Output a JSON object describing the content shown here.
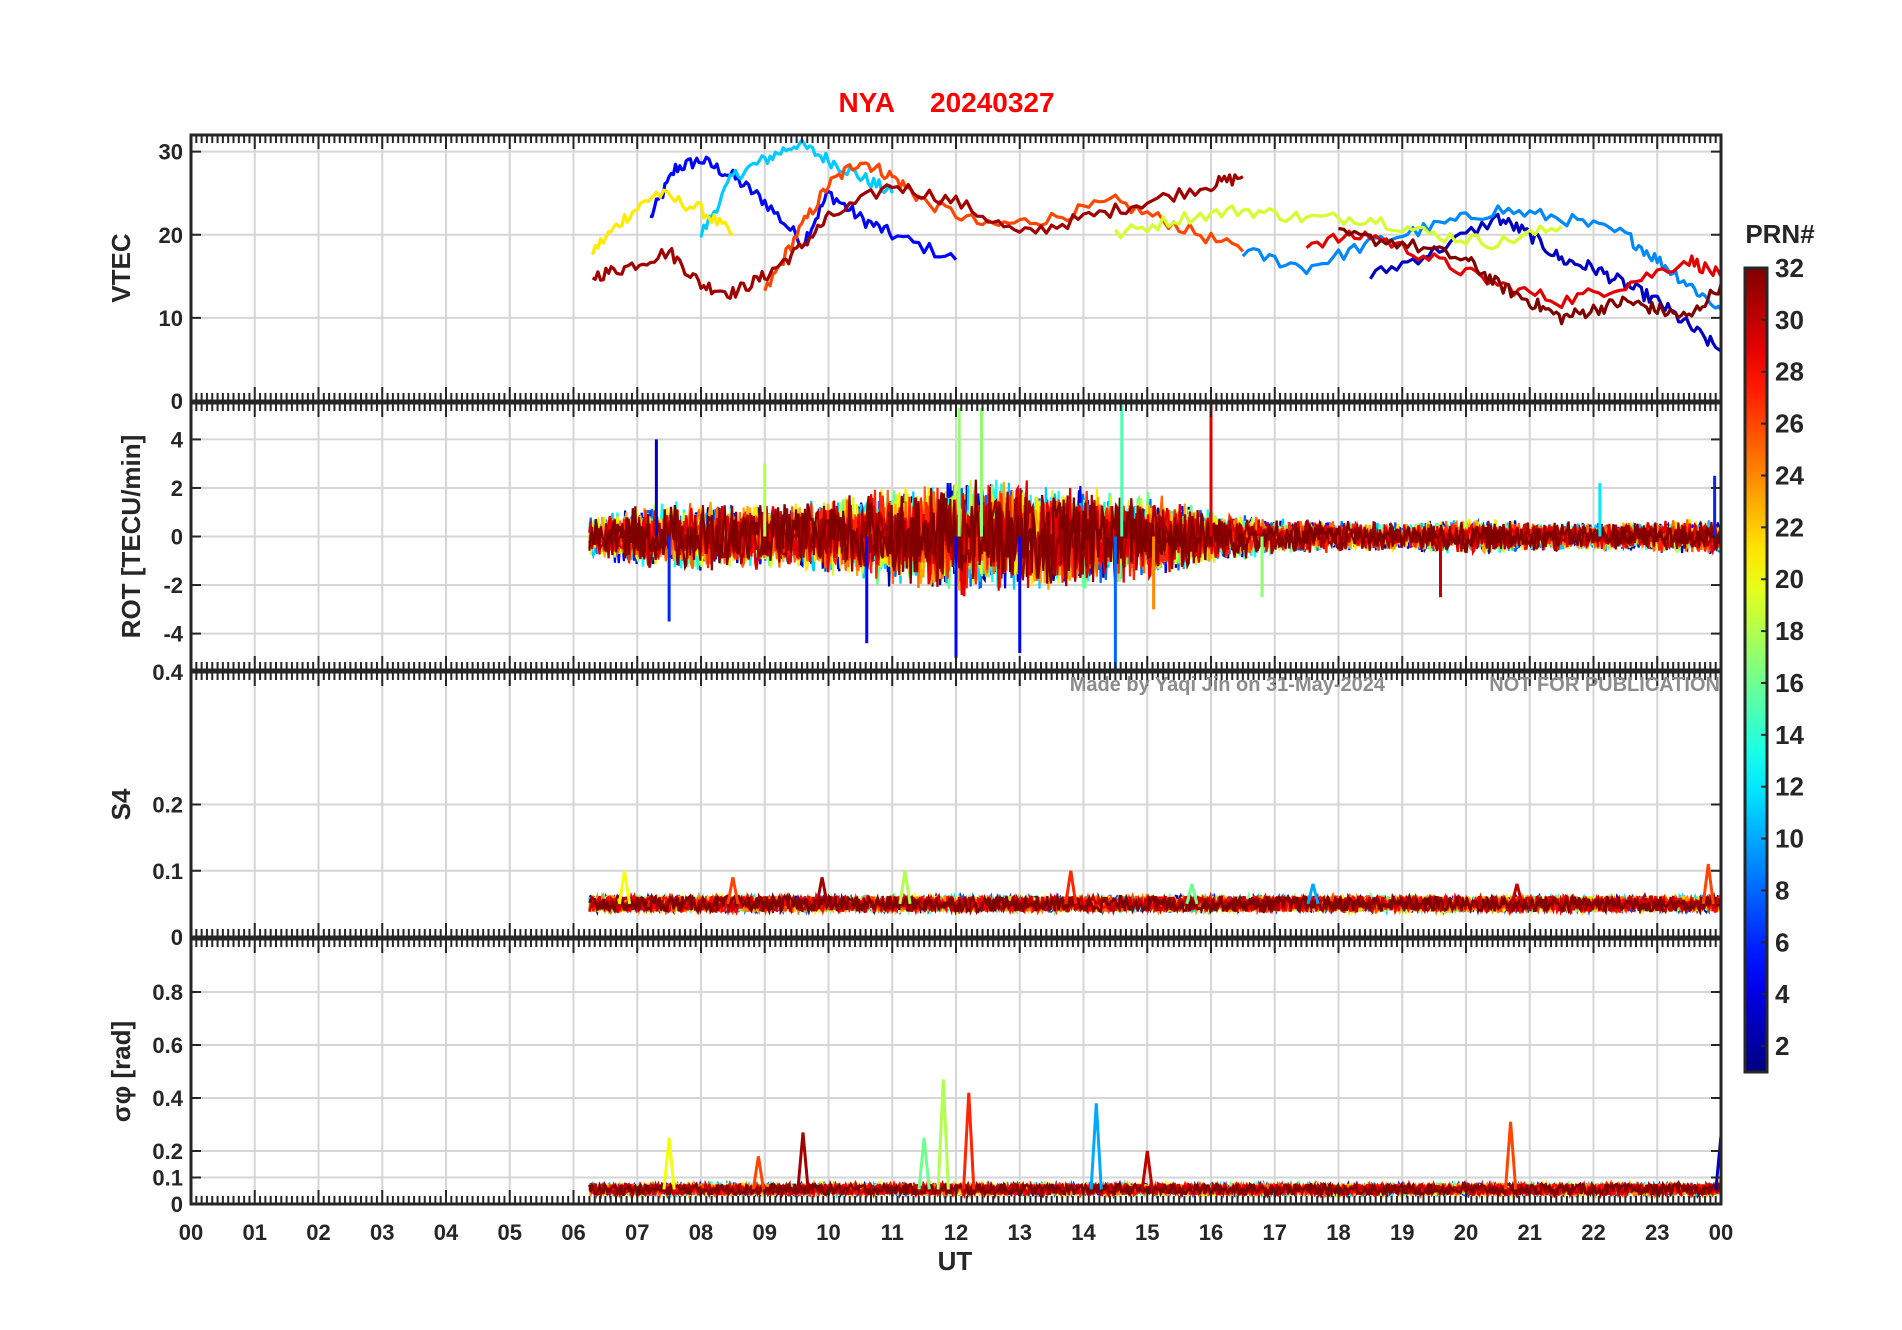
{
  "title": {
    "station": "NYA",
    "date": "20240327"
  },
  "watermark": {
    "author": "Made by Yaqi Jin on 31-May-2024",
    "notice": "NOT FOR PUBLICATION"
  },
  "colorbar": {
    "label": "PRN#",
    "ticks": [
      "2",
      "4",
      "6",
      "8",
      "10",
      "12",
      "14",
      "16",
      "18",
      "20",
      "22",
      "24",
      "26",
      "28",
      "30",
      "32"
    ],
    "range": [
      1,
      32
    ],
    "colormap": "jet"
  },
  "chart_data": [
    {
      "type": "line",
      "panel": "VTEC",
      "ylabel": "VTEC",
      "ylim": [
        0,
        32
      ],
      "yticks": [
        "0",
        "10",
        "20",
        "30"
      ],
      "ytick_values": [
        0,
        10,
        20,
        30
      ],
      "xlim": [
        0,
        24
      ],
      "grid": true,
      "series_note": "one trace per GPS PRN 1-32, colored by PRN; data begin near 06:15 UT",
      "series": [
        {
          "prn": 5,
          "x": [
            7.2,
            7.6,
            8.0,
            8.5,
            9.0,
            9.6,
            10.0,
            10.5,
            11.0,
            12.0
          ],
          "y": [
            22,
            28,
            29,
            27,
            24,
            19,
            25,
            22,
            20,
            17
          ]
        },
        {
          "prn": 11,
          "x": [
            8.0,
            8.5,
            9.0,
            9.5,
            10.0,
            10.5,
            11.0
          ],
          "y": [
            20,
            27,
            29,
            31,
            29,
            27,
            25
          ]
        },
        {
          "prn": 21,
          "x": [
            6.3,
            6.8,
            7.3,
            8.0,
            8.5
          ],
          "y": [
            18,
            22,
            25,
            23,
            20
          ]
        },
        {
          "prn": 26,
          "x": [
            9.0,
            9.5,
            10.0,
            10.5,
            11.0,
            11.5,
            12.5,
            13.5,
            14.5,
            15.5,
            16.5
          ],
          "y": [
            13,
            20,
            26,
            29,
            27,
            24,
            21,
            22,
            24,
            21,
            18
          ]
        },
        {
          "prn": 31,
          "x": [
            6.3,
            6.8,
            7.5,
            8.0,
            8.5,
            9.0,
            9.5,
            10.0,
            11.0,
            12.0,
            13.0,
            14.0,
            15.0,
            16.0,
            16.5
          ],
          "y": [
            15,
            16,
            18,
            14,
            13,
            15,
            18,
            22,
            26,
            24,
            20,
            22,
            24,
            26,
            27
          ]
        },
        {
          "prn": 3,
          "x": [
            18.5,
            19.5,
            20.5,
            21.0,
            21.5,
            22.0,
            22.5,
            23.0,
            23.5,
            24.0
          ],
          "y": [
            15,
            18,
            22,
            20,
            17,
            16,
            14,
            12,
            9,
            6
          ]
        },
        {
          "prn": 9,
          "x": [
            16.5,
            17.5,
            18.5,
            19.5,
            20.5,
            21.5,
            22.5,
            23.0,
            23.5,
            24.0
          ],
          "y": [
            18,
            16,
            19,
            21,
            23,
            22,
            20,
            17,
            14,
            11
          ]
        },
        {
          "prn": 19,
          "x": [
            14.5,
            15.5,
            16.5,
            17.5,
            18.5,
            19.5,
            20.5,
            21.5
          ],
          "y": [
            20,
            22,
            23,
            22,
            22,
            20,
            19,
            21
          ]
        },
        {
          "prn": 29,
          "x": [
            17.5,
            18.5,
            19.5,
            20.5,
            21.5,
            22.5,
            23.5,
            24.0
          ],
          "y": [
            19,
            20,
            17,
            14,
            12,
            14,
            17,
            15
          ]
        },
        {
          "prn": 32,
          "x": [
            18.0,
            19.0,
            20.0,
            20.5,
            21.0,
            21.5,
            22.0,
            22.5,
            23.0,
            23.5,
            24.0
          ],
          "y": [
            20,
            19,
            17,
            14,
            12,
            10,
            11,
            12,
            11,
            10,
            14
          ]
        }
      ]
    },
    {
      "type": "line",
      "panel": "ROT",
      "ylabel": "ROT [TECU/min]",
      "ylim": [
        -5.5,
        5.5
      ],
      "yticks": [
        "-4",
        "-2",
        "0",
        "2",
        "4"
      ],
      "ytick_values": [
        -4,
        -2,
        0,
        2,
        4
      ],
      "xlim": [
        0,
        24
      ],
      "grid": true,
      "envelope": {
        "x": [
          6.25,
          7,
          8,
          9,
          10,
          11,
          12,
          13,
          14,
          15,
          16,
          17,
          18,
          19,
          20,
          21,
          22,
          23,
          24
        ],
        "max_abs": [
          1.0,
          1.6,
          1.8,
          1.6,
          2.0,
          2.5,
          3.0,
          2.8,
          2.6,
          2.2,
          1.5,
          0.9,
          0.8,
          0.7,
          0.9,
          0.8,
          0.7,
          0.8,
          0.9
        ]
      },
      "spikes": [
        {
          "x": 7.3,
          "y": 4.0
        },
        {
          "x": 7.5,
          "y": -3.5
        },
        {
          "x": 9.0,
          "y": 3.0
        },
        {
          "x": 10.6,
          "y": -4.4
        },
        {
          "x": 12.0,
          "y": -5.0
        },
        {
          "x": 12.05,
          "y": 5.3
        },
        {
          "x": 12.4,
          "y": 5.3
        },
        {
          "x": 13.0,
          "y": -4.8
        },
        {
          "x": 14.5,
          "y": -5.5
        },
        {
          "x": 14.6,
          "y": 5.5
        },
        {
          "x": 15.1,
          "y": -3.0
        },
        {
          "x": 16.0,
          "y": 5.5
        },
        {
          "x": 16.8,
          "y": -2.5
        },
        {
          "x": 19.6,
          "y": -2.5
        },
        {
          "x": 22.1,
          "y": 2.2
        },
        {
          "x": 23.9,
          "y": 2.5
        }
      ]
    },
    {
      "type": "line",
      "panel": "S4",
      "ylabel": "S4",
      "ylim": [
        0,
        0.4
      ],
      "yticks": [
        "0",
        "0.1",
        "0.2",
        "0.4"
      ],
      "ytick_values": [
        0,
        0.1,
        0.2,
        0.4
      ],
      "xlim": [
        0,
        24
      ],
      "grid": true,
      "band": {
        "x_start": 6.25,
        "x_end": 24.0,
        "low": 0.03,
        "high": 0.07
      },
      "peaks": [
        {
          "x": 6.8,
          "y": 0.1
        },
        {
          "x": 8.5,
          "y": 0.09
        },
        {
          "x": 9.9,
          "y": 0.09
        },
        {
          "x": 11.2,
          "y": 0.1
        },
        {
          "x": 13.8,
          "y": 0.1
        },
        {
          "x": 15.7,
          "y": 0.08
        },
        {
          "x": 17.6,
          "y": 0.08
        },
        {
          "x": 20.8,
          "y": 0.08
        },
        {
          "x": 23.8,
          "y": 0.11
        }
      ]
    },
    {
      "type": "line",
      "panel": "sigma_phi",
      "ylabel": "σφ [rad]",
      "ylim": [
        0,
        1.0
      ],
      "yticks": [
        "0",
        "0.1",
        "0.2",
        "0.4",
        "0.6",
        "0.8"
      ],
      "ytick_values": [
        0,
        0.1,
        0.2,
        0.4,
        0.6,
        0.8
      ],
      "xlim": [
        0,
        24
      ],
      "grid": true,
      "band": {
        "x_start": 6.25,
        "x_end": 24.0,
        "low": 0.02,
        "high": 0.09
      },
      "peaks": [
        {
          "x": 7.5,
          "y": 0.25
        },
        {
          "x": 8.9,
          "y": 0.18
        },
        {
          "x": 9.6,
          "y": 0.27
        },
        {
          "x": 11.8,
          "y": 0.47
        },
        {
          "x": 12.2,
          "y": 0.42
        },
        {
          "x": 11.5,
          "y": 0.25
        },
        {
          "x": 14.2,
          "y": 0.38
        },
        {
          "x": 15.0,
          "y": 0.2
        },
        {
          "x": 20.7,
          "y": 0.31
        },
        {
          "x": 24.0,
          "y": 0.26
        }
      ]
    }
  ],
  "xaxis": {
    "label": "UT",
    "ticks": [
      "00",
      "01",
      "02",
      "03",
      "04",
      "05",
      "06",
      "07",
      "08",
      "09",
      "10",
      "11",
      "12",
      "13",
      "14",
      "15",
      "16",
      "17",
      "18",
      "19",
      "20",
      "21",
      "22",
      "23",
      "00"
    ],
    "range": [
      0,
      24
    ]
  }
}
